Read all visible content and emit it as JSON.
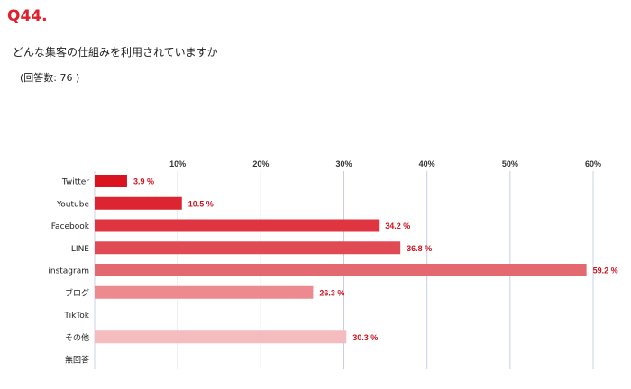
{
  "header": {
    "question_number": "Q44.",
    "question_text": "どんな集客の仕組みを利用されていますか",
    "answer_count": "(回答数: 76 )"
  },
  "chart_data": {
    "type": "bar",
    "orientation": "horizontal",
    "title": "",
    "xlabel": "",
    "ylabel": "",
    "xlim": [
      0,
      60
    ],
    "x_ticks": [
      10,
      20,
      30,
      40,
      50,
      60
    ],
    "x_tick_labels": [
      "10%",
      "20%",
      "30%",
      "40%",
      "50%",
      "60%"
    ],
    "categories": [
      "Twitter",
      "Youtube",
      "Facebook",
      "LINE",
      "instagram",
      "ブログ",
      "TikTok",
      "その他",
      "無回答"
    ],
    "values": [
      3.9,
      10.5,
      34.2,
      36.8,
      59.2,
      26.3,
      null,
      30.3,
      null
    ],
    "value_labels": [
      "3.9 %",
      "10.5 %",
      "34.2 %",
      "36.8 %",
      "59.2 %",
      "26.3 %",
      "",
      "30.3 %",
      ""
    ],
    "colors": [
      "#d9141e",
      "#dc2530",
      "#de3540",
      "#e04a55",
      "#e4686f",
      "#ec8a90",
      "#f0a6aa",
      "#f4bcbf",
      "#f6cdd0"
    ],
    "grid": true,
    "legend": "none"
  }
}
